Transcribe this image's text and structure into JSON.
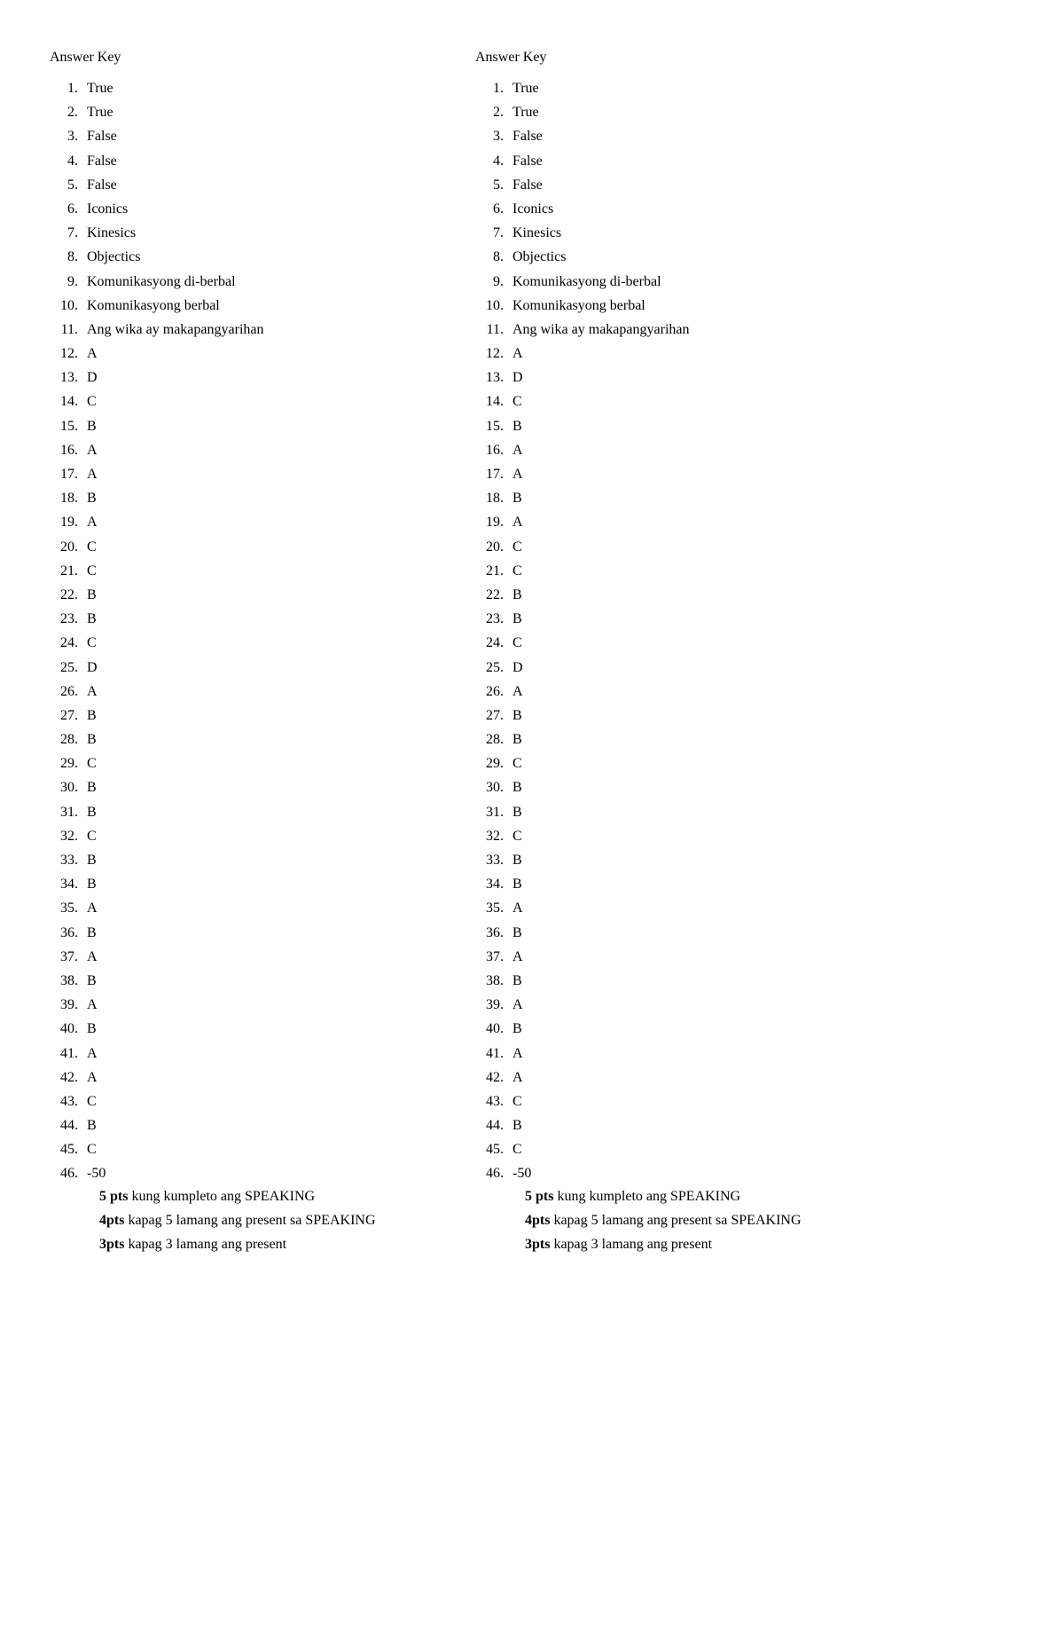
{
  "title": "Answer Key",
  "answers": [
    "True",
    "True",
    "False",
    "False",
    "False",
    "Iconics",
    "Kinesics",
    "Objectics",
    "Komunikasyong di-berbal",
    "Komunikasyong berbal",
    "Ang wika ay makapangyarihan",
    "A",
    "D",
    "C",
    "B",
    "A",
    "A",
    "B",
    "A",
    "C",
    "C",
    "B",
    "B",
    "C",
    "D",
    "A",
    "B",
    "B",
    "C",
    "B",
    "B",
    "C",
    "B",
    "B",
    "A",
    "B",
    "A",
    "B",
    "A",
    "B",
    "A",
    "A",
    "C",
    "B",
    "C"
  ],
  "range_item": "-50",
  "rubric": [
    {
      "pts": "5 pts",
      "text": " kung kumpleto ang SPEAKING"
    },
    {
      "pts": "4pts",
      "text": " kapag 5 lamang ang present sa SPEAKING"
    },
    {
      "pts": "3pts",
      "text": " kapag 3 lamang ang present"
    }
  ],
  "text_color": "#000000",
  "background_color": "#ffffff",
  "font_family": "Georgia, 'Times New Roman', serif",
  "font_size_pt": 12
}
